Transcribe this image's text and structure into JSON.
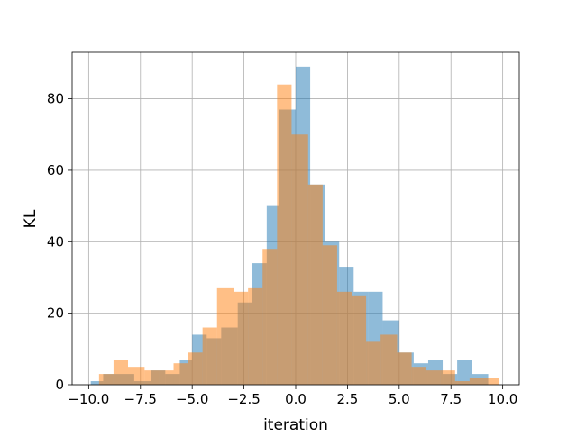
{
  "chart_data": {
    "type": "histogram",
    "xlabel": "iteration",
    "ylabel": "KL",
    "xlim": [
      -10.8,
      10.8
    ],
    "ylim": [
      0,
      93
    ],
    "grid": true,
    "legend": "none",
    "xticks": [
      "−10.0",
      "−7.5",
      "−5.0",
      "−2.5",
      "0.0",
      "2.5",
      "5.0",
      "7.5",
      "10.0"
    ],
    "xtick_values": [
      -10,
      -7.5,
      -5,
      -2.5,
      0,
      2.5,
      5,
      7.5,
      10
    ],
    "yticks": [
      "0",
      "20",
      "40",
      "60",
      "80"
    ],
    "ytick_values": [
      0,
      20,
      40,
      60,
      80
    ],
    "series": [
      {
        "color": "#1f77b4",
        "opacity": 0.5,
        "bins": [
          {
            "x0": -9.9,
            "x1": -9.3,
            "count": 1
          },
          {
            "x0": -9.3,
            "x1": -8.6,
            "count": 3
          },
          {
            "x0": -8.6,
            "x1": -7.8,
            "count": 3
          },
          {
            "x0": -7.8,
            "x1": -7.0,
            "count": 1
          },
          {
            "x0": -7.0,
            "x1": -6.3,
            "count": 4
          },
          {
            "x0": -6.3,
            "x1": -5.6,
            "count": 3
          },
          {
            "x0": -5.6,
            "x1": -5.0,
            "count": 7
          },
          {
            "x0": -5.0,
            "x1": -4.3,
            "count": 14
          },
          {
            "x0": -4.3,
            "x1": -3.6,
            "count": 13
          },
          {
            "x0": -3.6,
            "x1": -2.8,
            "count": 16
          },
          {
            "x0": -2.8,
            "x1": -2.1,
            "count": 23
          },
          {
            "x0": -2.1,
            "x1": -1.4,
            "count": 34
          },
          {
            "x0": -1.4,
            "x1": -0.8,
            "count": 50
          },
          {
            "x0": -0.8,
            "x1": 0.0,
            "count": 77
          },
          {
            "x0": 0.0,
            "x1": 0.7,
            "count": 89
          },
          {
            "x0": 0.7,
            "x1": 1.4,
            "count": 56
          },
          {
            "x0": 1.4,
            "x1": 2.1,
            "count": 40
          },
          {
            "x0": 2.1,
            "x1": 2.8,
            "count": 33
          },
          {
            "x0": 2.8,
            "x1": 3.5,
            "count": 26
          },
          {
            "x0": 3.5,
            "x1": 4.2,
            "count": 26
          },
          {
            "x0": 4.2,
            "x1": 5.0,
            "count": 18
          },
          {
            "x0": 5.0,
            "x1": 5.7,
            "count": 9
          },
          {
            "x0": 5.7,
            "x1": 6.4,
            "count": 6
          },
          {
            "x0": 6.4,
            "x1": 7.1,
            "count": 7
          },
          {
            "x0": 7.1,
            "x1": 7.8,
            "count": 3
          },
          {
            "x0": 7.8,
            "x1": 8.5,
            "count": 7
          },
          {
            "x0": 8.5,
            "x1": 9.3,
            "count": 3
          }
        ]
      },
      {
        "color": "#ff7f0e",
        "opacity": 0.5,
        "bins": [
          {
            "x0": -9.5,
            "x1": -8.8,
            "count": 3
          },
          {
            "x0": -8.8,
            "x1": -8.1,
            "count": 7
          },
          {
            "x0": -8.1,
            "x1": -7.3,
            "count": 5
          },
          {
            "x0": -7.3,
            "x1": -6.6,
            "count": 4
          },
          {
            "x0": -6.6,
            "x1": -5.9,
            "count": 4
          },
          {
            "x0": -5.9,
            "x1": -5.2,
            "count": 6
          },
          {
            "x0": -5.2,
            "x1": -4.5,
            "count": 9
          },
          {
            "x0": -4.5,
            "x1": -3.8,
            "count": 16
          },
          {
            "x0": -3.8,
            "x1": -3.0,
            "count": 27
          },
          {
            "x0": -3.0,
            "x1": -2.3,
            "count": 26
          },
          {
            "x0": -2.3,
            "x1": -1.6,
            "count": 27
          },
          {
            "x0": -1.6,
            "x1": -0.9,
            "count": 38
          },
          {
            "x0": -0.9,
            "x1": -0.2,
            "count": 84
          },
          {
            "x0": -0.2,
            "x1": 0.6,
            "count": 70
          },
          {
            "x0": 0.6,
            "x1": 1.3,
            "count": 56
          },
          {
            "x0": 1.3,
            "x1": 2.0,
            "count": 39
          },
          {
            "x0": 2.0,
            "x1": 2.7,
            "count": 26
          },
          {
            "x0": 2.7,
            "x1": 3.4,
            "count": 25
          },
          {
            "x0": 3.4,
            "x1": 4.1,
            "count": 12
          },
          {
            "x0": 4.1,
            "x1": 4.9,
            "count": 14
          },
          {
            "x0": 4.9,
            "x1": 5.6,
            "count": 9
          },
          {
            "x0": 5.6,
            "x1": 6.3,
            "count": 5
          },
          {
            "x0": 6.3,
            "x1": 7.0,
            "count": 4
          },
          {
            "x0": 7.0,
            "x1": 7.7,
            "count": 4
          },
          {
            "x0": 7.7,
            "x1": 8.4,
            "count": 1
          },
          {
            "x0": 8.4,
            "x1": 9.1,
            "count": 2
          },
          {
            "x0": 9.1,
            "x1": 9.8,
            "count": 2
          }
        ]
      }
    ]
  }
}
